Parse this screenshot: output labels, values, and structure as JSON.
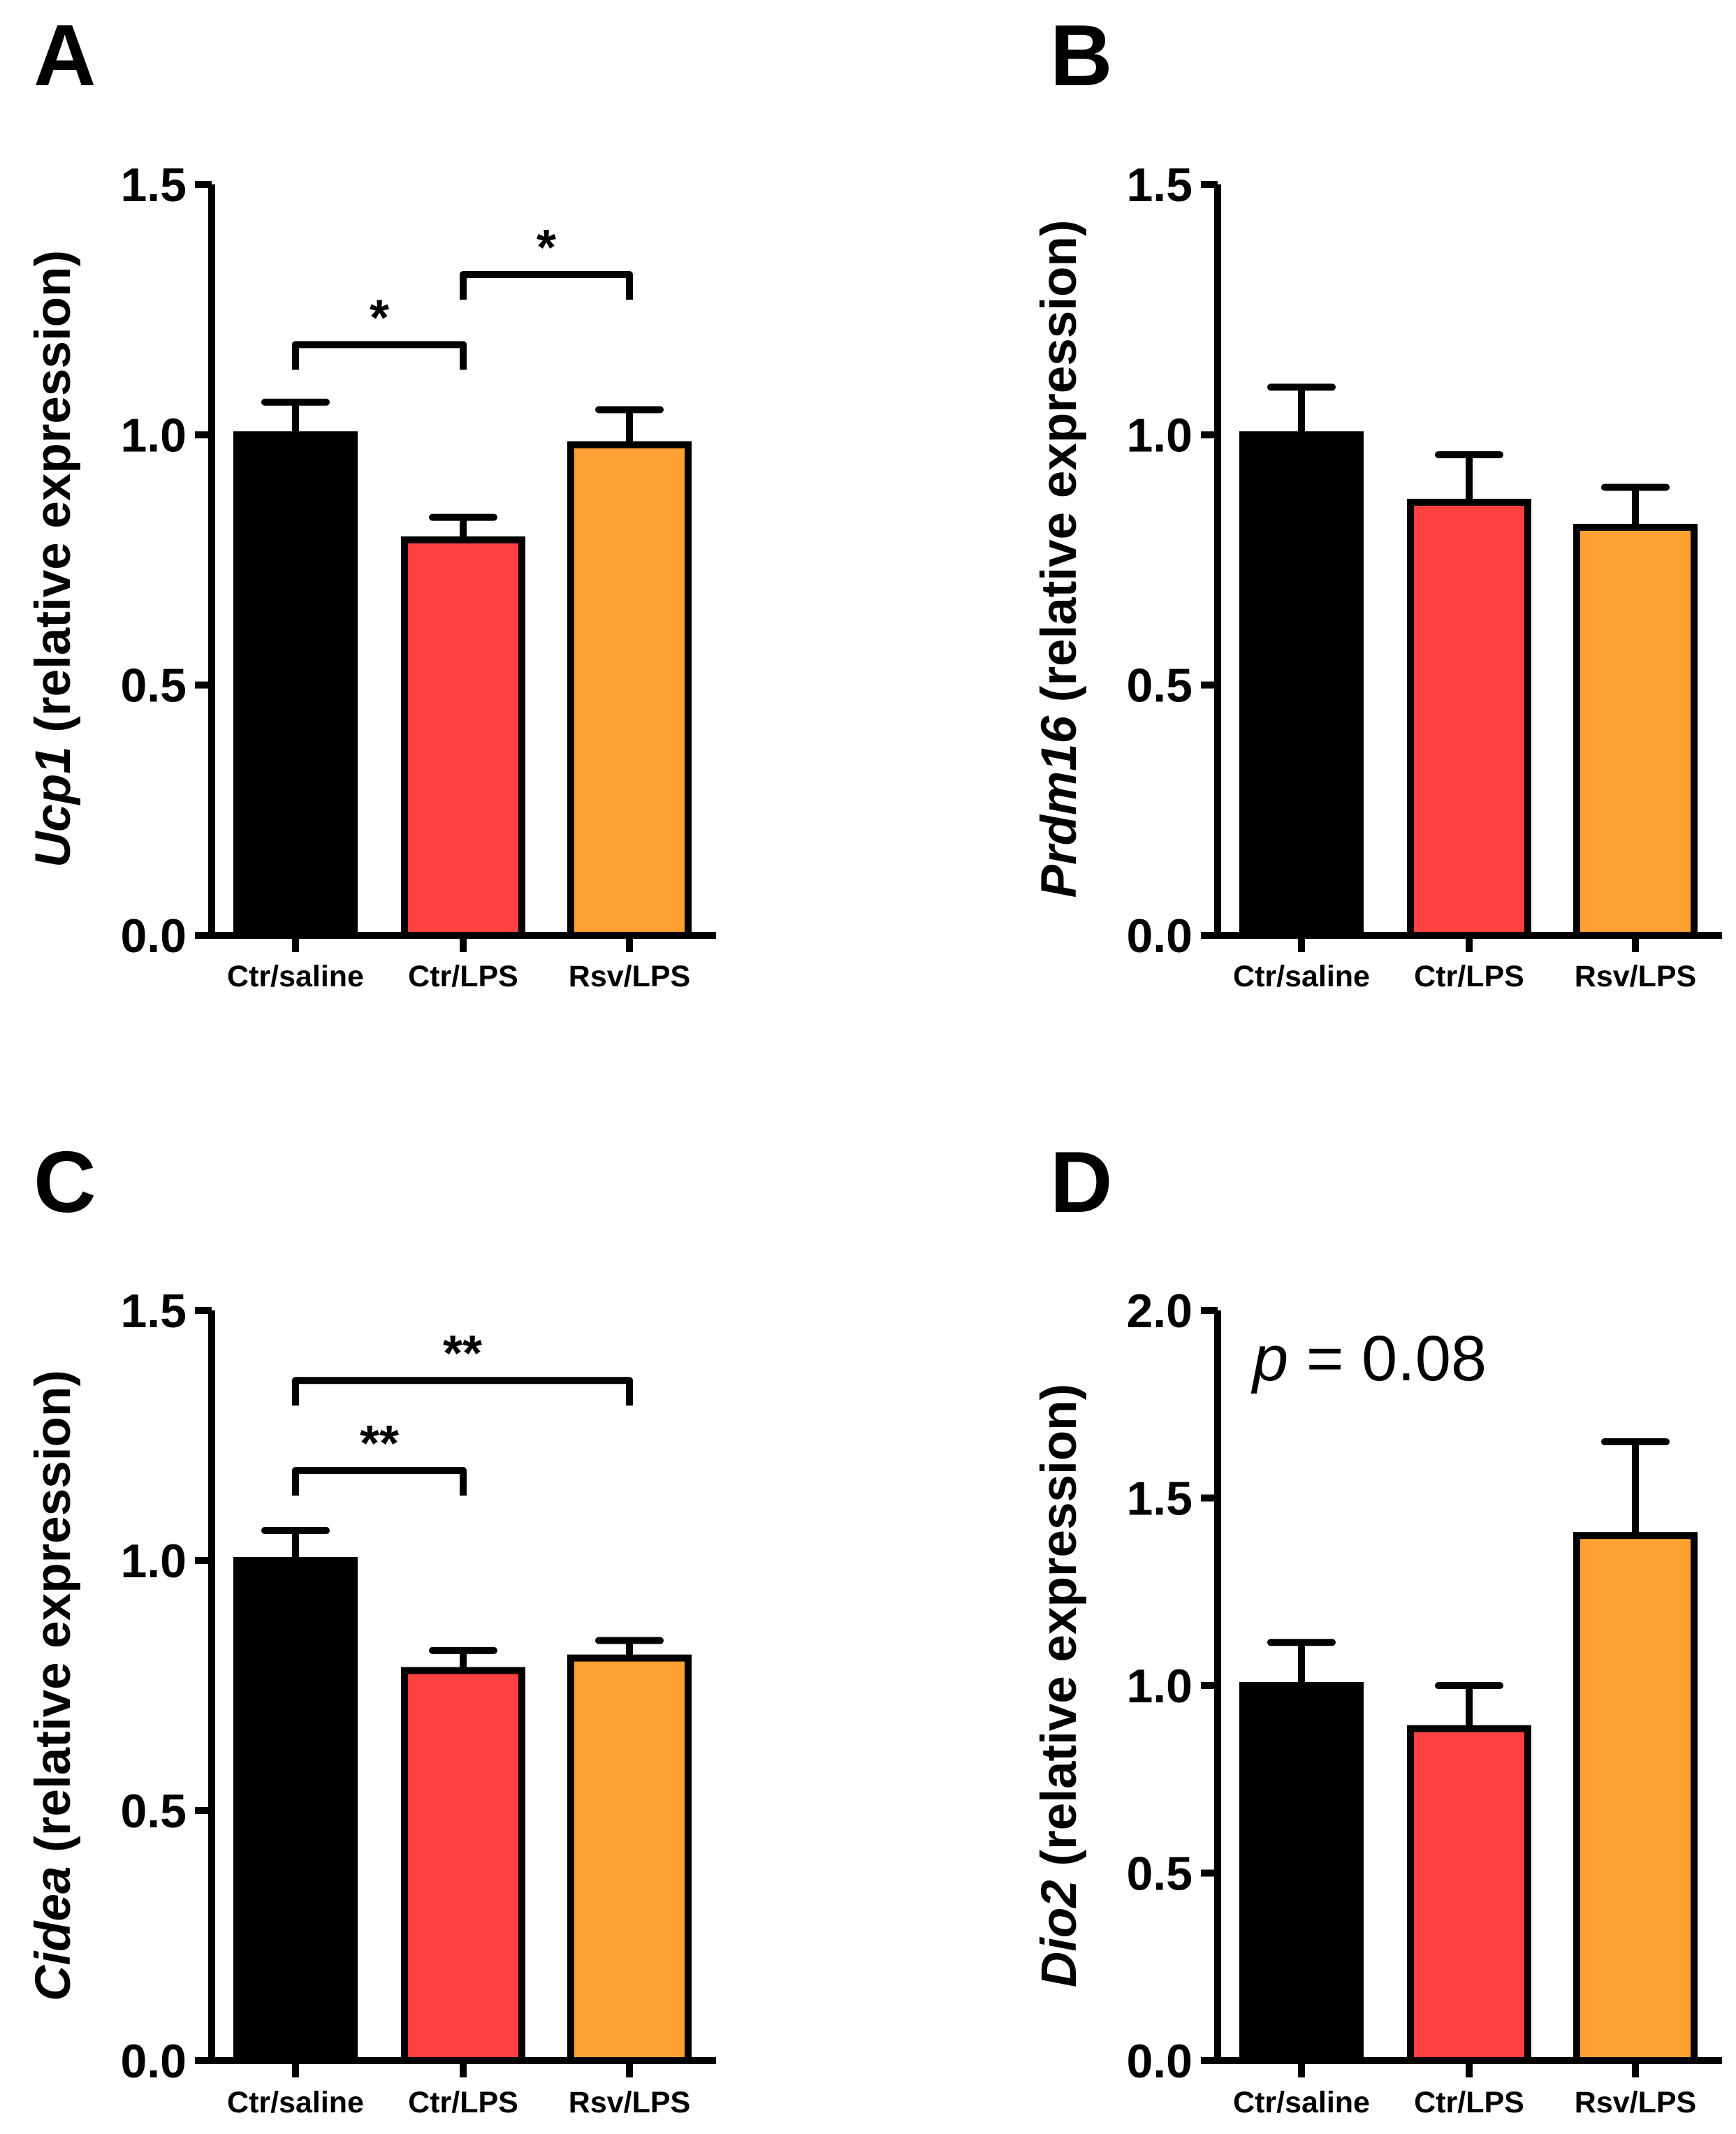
{
  "colors": {
    "Ctr/saline": "#000000",
    "Ctr/LPS": "#ff4040",
    "Rsv/LPS": "#ffa033",
    "stroke": "#000000"
  },
  "chart_data": [
    {
      "panel": "A",
      "type": "bar",
      "gene": "Ucp1",
      "ylabel_suffix": " (relative expression)",
      "categories": [
        "Ctr/saline",
        "Ctr/LPS",
        "Rsv/LPS"
      ],
      "values": [
        1.0,
        0.79,
        0.98
      ],
      "errors": [
        0.065,
        0.045,
        0.07
      ],
      "ylim": [
        0,
        1.5
      ],
      "yticks": [
        0.0,
        0.5,
        1.0,
        1.5
      ],
      "ytick_labels": [
        "0.0",
        "0.5",
        "1.0",
        "1.5"
      ],
      "significance": [
        {
          "from": 0,
          "to": 1,
          "label": "*",
          "level": 1.18
        },
        {
          "from": 1,
          "to": 2,
          "label": "*",
          "level": 1.32
        }
      ],
      "annotation": ""
    },
    {
      "panel": "B",
      "type": "bar",
      "gene": "Prdm16",
      "ylabel_suffix": " (relative expression)",
      "categories": [
        "Ctr/saline",
        "Ctr/LPS",
        "Rsv/LPS"
      ],
      "values": [
        1.0,
        0.865,
        0.815
      ],
      "errors": [
        0.095,
        0.095,
        0.08
      ],
      "ylim": [
        0,
        1.5
      ],
      "yticks": [
        0.0,
        0.5,
        1.0,
        1.5
      ],
      "ytick_labels": [
        "0.0",
        "0.5",
        "1.0",
        "1.5"
      ],
      "significance": [],
      "annotation": ""
    },
    {
      "panel": "C",
      "type": "bar",
      "gene": "Cidea",
      "ylabel_suffix": " (relative expression)",
      "categories": [
        "Ctr/saline",
        "Ctr/LPS",
        "Rsv/LPS"
      ],
      "values": [
        1.0,
        0.78,
        0.805
      ],
      "errors": [
        0.06,
        0.04,
        0.035
      ],
      "ylim": [
        0,
        1.5
      ],
      "yticks": [
        0.0,
        0.5,
        1.0,
        1.5
      ],
      "ytick_labels": [
        "0.0",
        "0.5",
        "1.0",
        "1.5"
      ],
      "significance": [
        {
          "from": 0,
          "to": 1,
          "label": "**",
          "level": 1.18
        },
        {
          "from": 0,
          "to": 2,
          "label": "**",
          "level": 1.36
        }
      ],
      "annotation": ""
    },
    {
      "panel": "D",
      "type": "bar",
      "gene": "Dio2",
      "ylabel_suffix": " (relative expression)",
      "categories": [
        "Ctr/saline",
        "Ctr/LPS",
        "Rsv/LPS"
      ],
      "values": [
        1.0,
        0.885,
        1.4
      ],
      "errors": [
        0.115,
        0.115,
        0.25
      ],
      "ylim": [
        0,
        2.0
      ],
      "yticks": [
        0.0,
        0.5,
        1.0,
        1.5,
        2.0
      ],
      "ytick_labels": [
        "0.0",
        "0.5",
        "1.0",
        "1.5",
        "2.0"
      ],
      "significance": [],
      "annotation": {
        "italic": "p",
        "rest": " = 0.08"
      }
    }
  ]
}
